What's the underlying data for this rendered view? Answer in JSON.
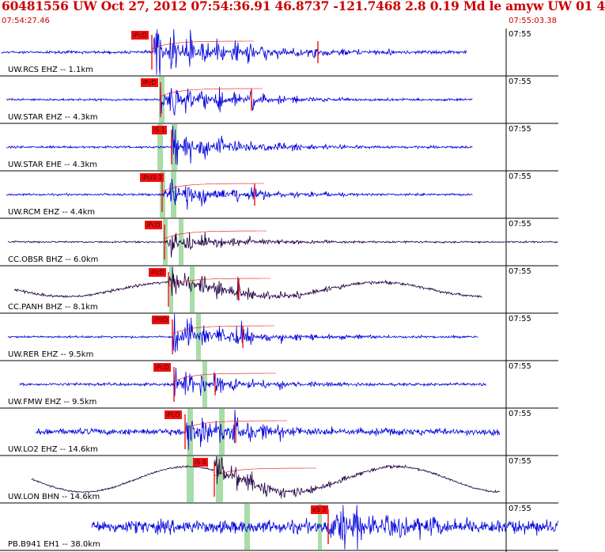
{
  "header": {
    "title": "60481556 UW Oct 27, 2012 07:54:36.91   46.8737 -121.7468  2.8 0.19 Md le amyw UW 01   4",
    "start_time": "07:54:27.46",
    "end_time": "07:55:03.38"
  },
  "colors": {
    "header_text": "#cc0000",
    "trace_blue": "#0000dd",
    "trace_dark": "#220044",
    "pick_red": "#ee1111",
    "window_green": "#a8dca8",
    "grid_line": "#000000"
  },
  "time_tick_label": "07:55",
  "traces": [
    {
      "label": "UW.RCS EHZ -- 1.1km",
      "pick": "iPcD",
      "color": "blue"
    },
    {
      "label": "UW.STAR EHZ -- 4.3km",
      "pick": "iPcD",
      "color": "blue"
    },
    {
      "label": "UW.STAR EHE -- 4.3km",
      "pick": "iS 1",
      "color": "blue"
    },
    {
      "label": "UW.RCM EHZ -- 4.4km",
      "pick": "iPciS 1",
      "color": "blue"
    },
    {
      "label": "CC.OBSR BHZ -- 6.0km",
      "pick": "iPcD",
      "color": "dark"
    },
    {
      "label": "CC.PANH BHZ -- 8.1km",
      "pick": "iPcD",
      "color": "dark"
    },
    {
      "label": "UW.RER EHZ -- 9.5km",
      "pick": "iPdD",
      "color": "blue"
    },
    {
      "label": "UW.FMW EHZ -- 9.5km",
      "pick": "iPcD",
      "color": "blue"
    },
    {
      "label": "UW.LO2 EHZ -- 14.6km",
      "pick": "iPcD",
      "color": "blue"
    },
    {
      "label": "UW.LON BHN -- 14.6km",
      "pick": "iS 0",
      "color": "dark"
    },
    {
      "label": "PB.B941 EH1 -- 38.0km",
      "pick": "eS 2",
      "color": "blue"
    }
  ]
}
